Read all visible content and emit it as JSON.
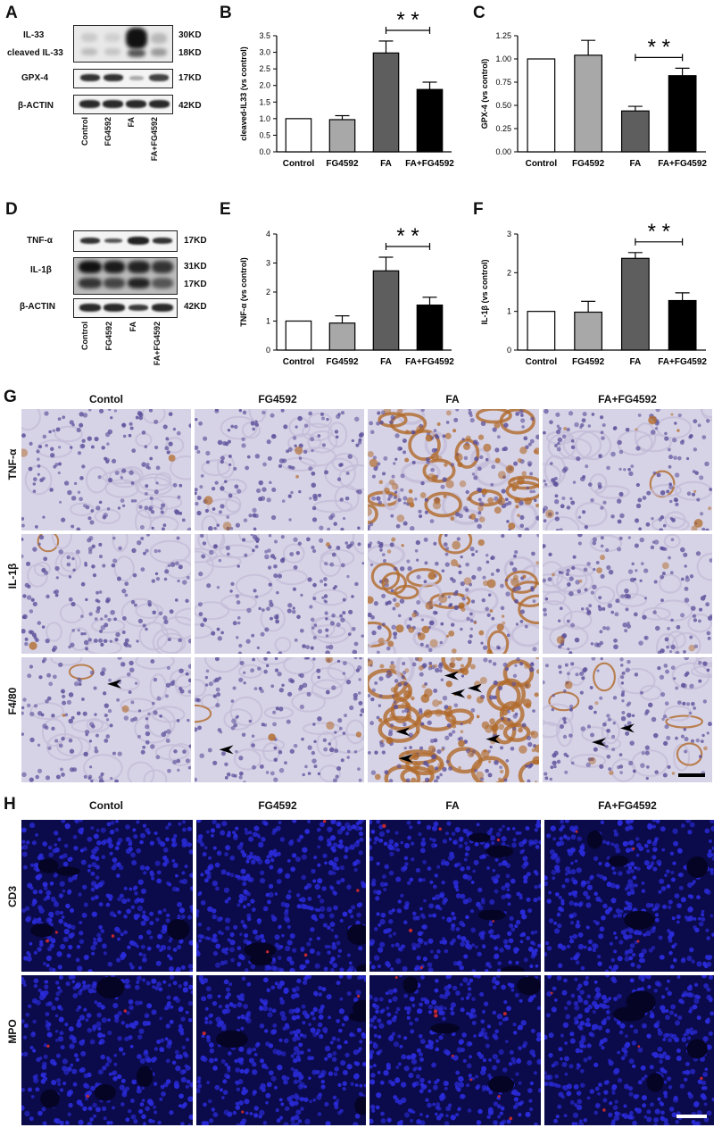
{
  "panels": {
    "A": {
      "label": "A",
      "rows": [
        "IL-33",
        "cleaved IL-33",
        "GPX-4",
        "β-ACTIN"
      ],
      "kd": [
        "30KD",
        "18KD",
        "17KD",
        "42KD"
      ],
      "lanes": [
        "Control",
        "FG4592",
        "FA",
        "FA+FG4592"
      ]
    },
    "B": {
      "label": "B",
      "chart_data": {
        "type": "bar",
        "categories": [
          "Control",
          "FG4592",
          "FA",
          "FA+FG4592"
        ],
        "values": [
          1.0,
          0.97,
          2.98,
          1.88
        ],
        "errors": [
          0.0,
          0.12,
          0.36,
          0.22
        ],
        "fills": [
          "#ffffff",
          "#a8a8a8",
          "#5e5e5e",
          "#000000"
        ],
        "ylabel": "cleaved-IL33 (vs control)",
        "ylim": [
          0,
          3.5
        ],
        "ticks": [
          "0.0",
          "0.5",
          "1.0",
          "1.5",
          "2.0",
          "2.5",
          "3.0",
          "3.5"
        ],
        "significance": {
          "from": 2,
          "to": 3,
          "label": "* *"
        }
      }
    },
    "C": {
      "label": "C",
      "chart_data": {
        "type": "bar",
        "categories": [
          "Control",
          "FG4592",
          "FA",
          "FA+FG4592"
        ],
        "values": [
          1.0,
          1.04,
          0.44,
          0.82
        ],
        "errors": [
          0.0,
          0.16,
          0.05,
          0.08
        ],
        "fills": [
          "#ffffff",
          "#a8a8a8",
          "#5e5e5e",
          "#000000"
        ],
        "ylabel": "GPX-4 (vs control)",
        "ylim": [
          0,
          1.25
        ],
        "ticks": [
          "0.00",
          "0.25",
          "0.50",
          "0.75",
          "1.00",
          "1.25"
        ],
        "significance": {
          "from": 2,
          "to": 3,
          "label": "* *"
        }
      }
    },
    "D": {
      "label": "D",
      "rows": [
        "TNF-α",
        "IL-1β",
        "β-ACTIN"
      ],
      "kd": [
        "17KD",
        "31KD",
        "17KD",
        "42KD"
      ],
      "lanes": [
        "Control",
        "FG4592",
        "FA",
        "FA+FG4592"
      ]
    },
    "E": {
      "label": "E",
      "chart_data": {
        "type": "bar",
        "categories": [
          "Control",
          "FG4592",
          "FA",
          "FA+FG4592"
        ],
        "values": [
          1.0,
          0.93,
          2.73,
          1.55
        ],
        "errors": [
          0.0,
          0.25,
          0.47,
          0.27
        ],
        "fills": [
          "#ffffff",
          "#a8a8a8",
          "#5e5e5e",
          "#000000"
        ],
        "ylabel": "TNF-α (vs control)",
        "ylim": [
          0,
          4
        ],
        "ticks": [
          "0",
          "1",
          "2",
          "3",
          "4"
        ],
        "significance": {
          "from": 2,
          "to": 3,
          "label": "* *"
        }
      }
    },
    "F": {
      "label": "F",
      "chart_data": {
        "type": "bar",
        "categories": [
          "Control",
          "FG4592",
          "FA",
          "FA+FG4592"
        ],
        "values": [
          1.0,
          0.98,
          2.37,
          1.28
        ],
        "errors": [
          0.0,
          0.28,
          0.15,
          0.2
        ],
        "fills": [
          "#ffffff",
          "#a8a8a8",
          "#5e5e5e",
          "#000000"
        ],
        "ylabel": "IL-1β (vs control)",
        "ylim": [
          0,
          3
        ],
        "ticks": [
          "0",
          "1",
          "2",
          "3"
        ],
        "significance": {
          "from": 2,
          "to": 3,
          "label": "* *"
        }
      }
    },
    "G": {
      "label": "G",
      "columns": [
        "Contol",
        "FG4592",
        "FA",
        "FA+FG4592"
      ],
      "rows": [
        "TNF-α",
        "IL-1β",
        "F4/80"
      ]
    },
    "H": {
      "label": "H",
      "columns": [
        "Contol",
        "FG4592",
        "FA",
        "FA+FG4592"
      ],
      "rows": [
        "CD3",
        "MPO"
      ]
    }
  },
  "colors": {
    "ihc_background": "#d7d3e6",
    "ihc_nuclei": "#5a4f9a",
    "ihc_brown": "#b06a2a",
    "if_background": "#0b0a4a",
    "if_nuclei": "#2a2bd8",
    "if_red": "#c0282e"
  }
}
